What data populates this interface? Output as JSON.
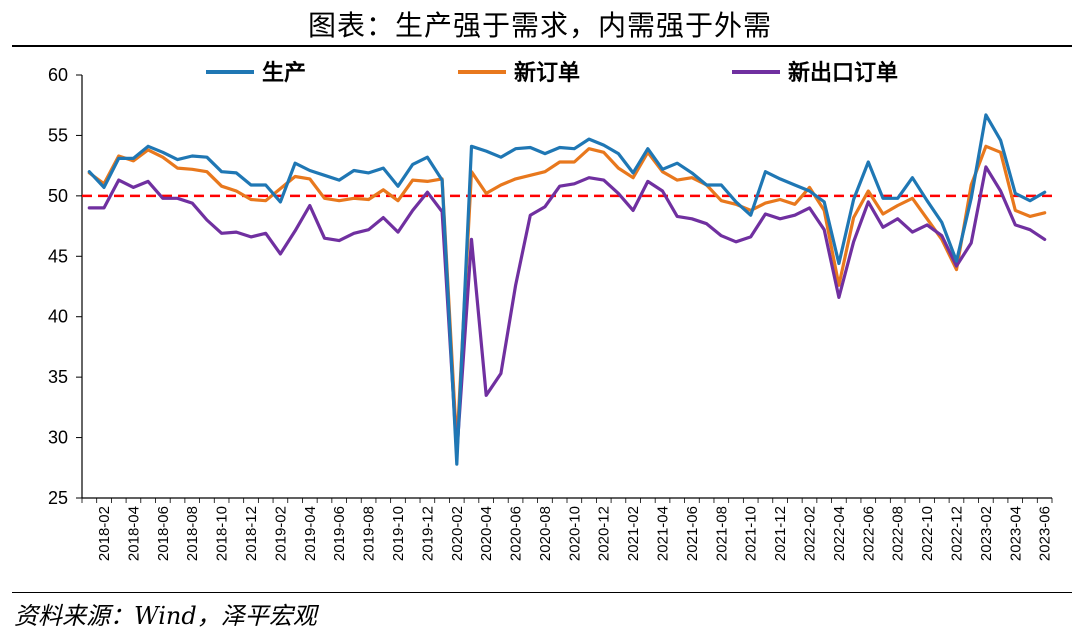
{
  "page": {
    "title": "图表：生产强于需求，内需强于外需",
    "source": "资料来源：Wind，泽平宏观"
  },
  "chart_data": {
    "type": "line",
    "title": "图表：生产强于需求，内需强于外需",
    "xlabel": "",
    "ylabel": "",
    "ylim": [
      25,
      60
    ],
    "yticks": [
      25,
      30,
      35,
      40,
      45,
      50,
      55,
      60
    ],
    "xtick_labels": [
      "2018-02",
      "2018-04",
      "2018-06",
      "2018-08",
      "2018-10",
      "2018-12",
      "2019-02",
      "2019-04",
      "2019-06",
      "2019-08",
      "2019-10",
      "2019-12",
      "2020-02",
      "2020-04",
      "2020-06",
      "2020-08",
      "2020-10",
      "2020-12",
      "2021-02",
      "2021-04",
      "2021-06",
      "2021-08",
      "2021-10",
      "2021-12",
      "2022-02",
      "2022-04",
      "2022-06",
      "2022-08",
      "2022-10",
      "2022-12",
      "2023-02",
      "2023-04",
      "2023-06"
    ],
    "x": [
      "2018-01",
      "2018-02",
      "2018-03",
      "2018-04",
      "2018-05",
      "2018-06",
      "2018-07",
      "2018-08",
      "2018-09",
      "2018-10",
      "2018-11",
      "2018-12",
      "2019-01",
      "2019-02",
      "2019-03",
      "2019-04",
      "2019-05",
      "2019-06",
      "2019-07",
      "2019-08",
      "2019-09",
      "2019-10",
      "2019-11",
      "2019-12",
      "2020-01",
      "2020-02",
      "2020-03",
      "2020-04",
      "2020-05",
      "2020-06",
      "2020-07",
      "2020-08",
      "2020-09",
      "2020-10",
      "2020-11",
      "2020-12",
      "2021-01",
      "2021-02",
      "2021-03",
      "2021-04",
      "2021-05",
      "2021-06",
      "2021-07",
      "2021-08",
      "2021-09",
      "2021-10",
      "2021-11",
      "2021-12",
      "2022-01",
      "2022-02",
      "2022-03",
      "2022-04",
      "2022-05",
      "2022-06",
      "2022-07",
      "2022-08",
      "2022-09",
      "2022-10",
      "2022-11",
      "2022-12",
      "2023-01",
      "2023-02",
      "2023-03",
      "2023-04",
      "2023-05",
      "2023-06"
    ],
    "series": [
      {
        "name": "生产",
        "color": "#1f77b4",
        "values": [
          52.0,
          50.7,
          53.1,
          53.1,
          54.1,
          53.6,
          53.0,
          53.3,
          53.2,
          52.0,
          51.9,
          50.9,
          50.9,
          49.5,
          52.7,
          52.1,
          51.7,
          51.3,
          52.1,
          51.9,
          52.3,
          50.8,
          52.6,
          53.2,
          51.3,
          27.8,
          54.1,
          53.7,
          53.2,
          53.9,
          54.0,
          53.5,
          54.0,
          53.9,
          54.7,
          54.2,
          53.5,
          51.9,
          53.9,
          52.2,
          52.7,
          51.9,
          50.9,
          50.9,
          49.5,
          48.4,
          52.0,
          51.4,
          50.9,
          50.4,
          49.5,
          44.4,
          49.7,
          52.8,
          49.8,
          49.8,
          51.5,
          49.6,
          47.8,
          44.6,
          49.8,
          56.7,
          54.6,
          50.2,
          49.6,
          50.3
        ]
      },
      {
        "name": "新订单",
        "color": "#e8781d",
        "values": [
          51.9,
          51.0,
          53.3,
          52.9,
          53.8,
          53.2,
          52.3,
          52.2,
          52.0,
          50.8,
          50.4,
          49.7,
          49.6,
          50.6,
          51.6,
          51.4,
          49.8,
          49.6,
          49.8,
          49.7,
          50.5,
          49.6,
          51.3,
          51.2,
          51.4,
          29.3,
          52.0,
          50.2,
          50.9,
          51.4,
          51.7,
          52.0,
          52.8,
          52.8,
          53.9,
          53.6,
          52.3,
          51.5,
          53.6,
          52.0,
          51.3,
          51.5,
          50.9,
          49.6,
          49.3,
          48.8,
          49.4,
          49.7,
          49.3,
          50.7,
          48.8,
          42.6,
          48.2,
          50.4,
          48.5,
          49.2,
          49.8,
          48.1,
          46.4,
          43.9,
          50.9,
          54.1,
          53.6,
          48.8,
          48.3,
          48.6
        ]
      },
      {
        "name": "新出口订单",
        "color": "#7030a0",
        "values": [
          49.0,
          49.0,
          51.3,
          50.7,
          51.2,
          49.8,
          49.8,
          49.4,
          48.0,
          46.9,
          47.0,
          46.6,
          46.9,
          45.2,
          47.1,
          49.2,
          46.5,
          46.3,
          46.9,
          47.2,
          48.2,
          47.0,
          48.8,
          50.3,
          48.7,
          28.7,
          46.4,
          33.5,
          35.3,
          42.6,
          48.4,
          49.1,
          50.8,
          51.0,
          51.5,
          51.3,
          50.2,
          48.8,
          51.2,
          50.4,
          48.3,
          48.1,
          47.7,
          46.7,
          46.2,
          46.6,
          48.5,
          48.1,
          48.4,
          49.0,
          47.2,
          41.6,
          46.2,
          49.5,
          47.4,
          48.1,
          47.0,
          47.6,
          46.7,
          44.2,
          46.1,
          52.4,
          50.4,
          47.6,
          47.2,
          46.4
        ]
      }
    ],
    "reference_line": {
      "value": 50,
      "color": "#ff0000",
      "style": "dashed"
    },
    "legend_position": "top",
    "grid": false
  }
}
